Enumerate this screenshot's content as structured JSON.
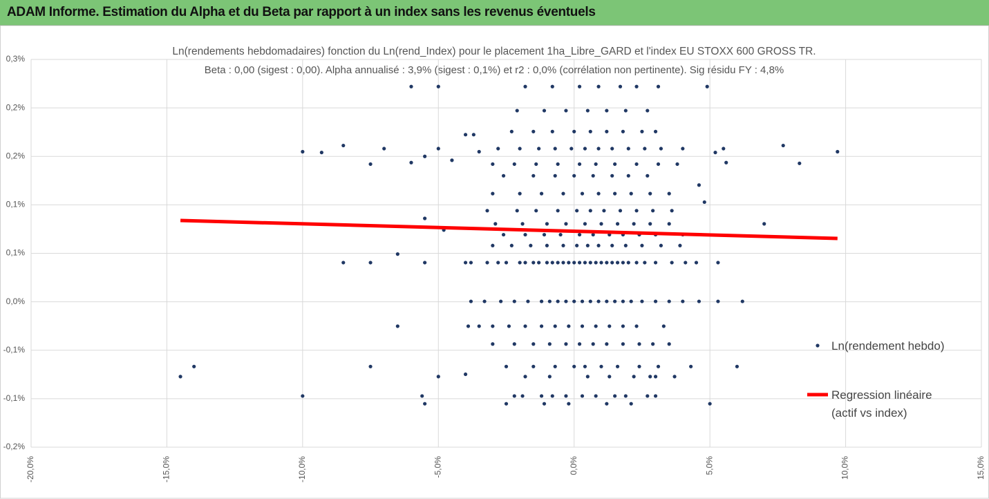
{
  "header": {
    "title": "ADAM Informe. Estimation du Alpha et du Beta par rapport à un index sans les revenus éventuels"
  },
  "chart_data": {
    "type": "scatter",
    "title": "Ln(rendements hebdomadaires) fonction du Ln(rend_Index) pour le placement 1ha_Libre_GARD et l'index EU STOXX 600 GROSS TR.",
    "subtitle": "Beta : 0,00 (sigest : 0,00). Alpha annualisé : 3,9% (sigest : 0,1%) et r2 : 0,0% (corrélation non pertinente). Sig résidu FY : 4,8%",
    "xlim": [
      -20,
      15
    ],
    "xticks": [
      {
        "value": -20,
        "label": "-20,0%"
      },
      {
        "value": -15,
        "label": "-15,0%"
      },
      {
        "value": -10,
        "label": "-10,0%"
      },
      {
        "value": -5,
        "label": "-5,0%"
      },
      {
        "value": 0,
        "label": "0,0%"
      },
      {
        "value": 5,
        "label": "5,0%"
      },
      {
        "value": 10,
        "label": "10,0%"
      },
      {
        "value": 15,
        "label": "15,0%"
      }
    ],
    "ylim": [
      -0.2,
      0.3
    ],
    "yticks": [
      {
        "value": 0.3,
        "label": "0,3%"
      },
      {
        "value": 0.2375,
        "label": "0,2%"
      },
      {
        "value": 0.175,
        "label": "0,2%"
      },
      {
        "value": 0.1125,
        "label": "0,1%"
      },
      {
        "value": 0.05,
        "label": "0,1%"
      },
      {
        "value": -0.0125,
        "label": "0,0%"
      },
      {
        "value": -0.075,
        "label": "-0,1%"
      },
      {
        "value": -0.1375,
        "label": "-0,1%"
      },
      {
        "value": -0.2,
        "label": "-0,2%"
      }
    ],
    "grid": true,
    "legend": "right",
    "series": [
      {
        "name": "Ln(rendement hebdo)",
        "type": "scatter",
        "color": "#203864",
        "x": [
          -3.8,
          -3.2,
          -2.8,
          -2.5,
          -2.0,
          -1.8,
          -1.5,
          -1.3,
          -1.0,
          -0.8,
          -0.6,
          -0.4,
          -0.2,
          0.0,
          0.2,
          0.4,
          0.6,
          0.8,
          1.0,
          1.2,
          1.4,
          1.6,
          1.8,
          2.0,
          2.3,
          2.6,
          3.0,
          3.6,
          4.1,
          4.5,
          -3.8,
          -3.3,
          -2.7,
          -2.2,
          -1.7,
          -1.2,
          -0.9,
          -0.6,
          -0.3,
          0.0,
          0.3,
          0.6,
          0.9,
          1.2,
          1.5,
          1.8,
          2.1,
          2.5,
          3.0,
          3.5,
          4.0,
          4.6,
          5.3,
          -3.9,
          -3.5,
          -3.0,
          -2.4,
          -1.8,
          -1.2,
          -0.7,
          -0.2,
          0.3,
          0.8,
          1.3,
          1.8,
          2.3,
          3.3,
          -3.0,
          -2.2,
          -1.5,
          -0.9,
          -0.3,
          0.2,
          0.7,
          1.2,
          1.8,
          2.4,
          2.9,
          3.5,
          -2.5,
          -1.5,
          -0.7,
          0.0,
          0.4,
          1.0,
          1.6,
          2.4,
          3.1,
          4.3,
          -1.8,
          -0.9,
          0.5,
          1.3,
          2.2,
          2.8,
          3.0,
          3.7,
          -2.2,
          -1.9,
          -1.2,
          -0.8,
          -0.3,
          0.3,
          0.8,
          1.5,
          1.9,
          2.7,
          3.0,
          -2.5,
          -1.1,
          -0.2,
          1.2,
          2.1,
          -3.0,
          -2.3,
          -1.6,
          -1.0,
          -0.4,
          0.1,
          0.5,
          0.9,
          1.4,
          1.9,
          2.5,
          3.2,
          3.9,
          -2.6,
          -1.8,
          -1.1,
          -0.5,
          0.2,
          0.7,
          1.3,
          1.8,
          2.4,
          3.0,
          4.0,
          -2.9,
          -1.9,
          -1.0,
          -0.3,
          0.4,
          1.0,
          1.6,
          2.2,
          2.8,
          3.5,
          -3.2,
          -2.1,
          -1.4,
          -0.6,
          0.1,
          0.6,
          1.1,
          1.7,
          2.3,
          2.9,
          3.6,
          -3.0,
          -2.0,
          -1.2,
          -0.4,
          0.3,
          0.9,
          1.5,
          2.1,
          2.8,
          3.5,
          -2.6,
          -1.5,
          -0.7,
          0.0,
          0.7,
          1.4,
          2.0,
          2.7,
          -3.0,
          -2.2,
          -1.4,
          -0.6,
          0.2,
          0.8,
          1.5,
          2.3,
          3.1,
          3.8,
          -2.8,
          -2.0,
          -1.3,
          -0.7,
          -0.1,
          0.4,
          0.9,
          1.4,
          2.0,
          2.6,
          3.2,
          4.0,
          -2.3,
          -1.5,
          -0.8,
          0.0,
          0.6,
          1.2,
          1.8,
          2.5,
          3.0,
          -2.1,
          -1.1,
          -0.3,
          0.5,
          1.2,
          1.9,
          2.7,
          -1.8,
          -0.8,
          0.2,
          0.9,
          1.7,
          2.3,
          3.1,
          -14.5,
          -14.0,
          -10.0,
          -10.0,
          -9.3,
          -8.5,
          -8.5,
          -7.5,
          -7.5,
          -7.5,
          -7.0,
          9.7,
          8.3,
          7.7,
          7.0,
          6.0,
          6.2,
          5.3,
          5.0,
          4.9,
          5.2,
          5.5,
          5.6,
          4.6,
          4.8,
          -6.5,
          -6.5,
          -5.5,
          -5.6,
          -5.5,
          -5.0,
          -4.0,
          -6.0,
          -5.5,
          -5.0,
          -4.5,
          -4.0,
          -3.7,
          -3.5,
          -6.0,
          -5.0,
          -5.5,
          -4.0,
          -4.8
        ],
        "values": [
          0.038,
          0.038,
          0.038,
          0.038,
          0.038,
          0.038,
          0.038,
          0.038,
          0.038,
          0.038,
          0.038,
          0.038,
          0.038,
          0.038,
          0.038,
          0.038,
          0.038,
          0.038,
          0.038,
          0.038,
          0.038,
          0.038,
          0.038,
          0.038,
          0.038,
          0.038,
          0.038,
          0.038,
          0.038,
          0.038,
          -0.012,
          -0.012,
          -0.012,
          -0.012,
          -0.012,
          -0.012,
          -0.012,
          -0.012,
          -0.012,
          -0.012,
          -0.012,
          -0.012,
          -0.012,
          -0.012,
          -0.012,
          -0.012,
          -0.012,
          -0.012,
          -0.012,
          -0.012,
          -0.012,
          -0.012,
          -0.012,
          -0.044,
          -0.044,
          -0.044,
          -0.044,
          -0.044,
          -0.044,
          -0.044,
          -0.044,
          -0.044,
          -0.044,
          -0.044,
          -0.044,
          -0.044,
          -0.044,
          -0.067,
          -0.067,
          -0.067,
          -0.067,
          -0.067,
          -0.067,
          -0.067,
          -0.067,
          -0.067,
          -0.067,
          -0.067,
          -0.067,
          -0.096,
          -0.096,
          -0.096,
          -0.096,
          -0.096,
          -0.096,
          -0.096,
          -0.096,
          -0.096,
          -0.096,
          -0.109,
          -0.109,
          -0.109,
          -0.109,
          -0.109,
          -0.109,
          -0.109,
          -0.109,
          -0.134,
          -0.134,
          -0.134,
          -0.134,
          -0.134,
          -0.134,
          -0.134,
          -0.134,
          -0.134,
          -0.134,
          -0.134,
          -0.144,
          -0.144,
          -0.144,
          -0.144,
          -0.144,
          0.06,
          0.06,
          0.06,
          0.06,
          0.06,
          0.06,
          0.06,
          0.06,
          0.06,
          0.06,
          0.06,
          0.06,
          0.06,
          0.074,
          0.074,
          0.074,
          0.074,
          0.074,
          0.074,
          0.074,
          0.074,
          0.074,
          0.074,
          0.074,
          0.088,
          0.088,
          0.088,
          0.088,
          0.088,
          0.088,
          0.088,
          0.088,
          0.088,
          0.088,
          0.105,
          0.105,
          0.105,
          0.105,
          0.105,
          0.105,
          0.105,
          0.105,
          0.105,
          0.105,
          0.105,
          0.127,
          0.127,
          0.127,
          0.127,
          0.127,
          0.127,
          0.127,
          0.127,
          0.127,
          0.127,
          0.15,
          0.15,
          0.15,
          0.15,
          0.15,
          0.15,
          0.15,
          0.15,
          0.165,
          0.165,
          0.165,
          0.165,
          0.165,
          0.165,
          0.165,
          0.165,
          0.165,
          0.165,
          0.185,
          0.185,
          0.185,
          0.185,
          0.185,
          0.185,
          0.185,
          0.185,
          0.185,
          0.185,
          0.185,
          0.185,
          0.207,
          0.207,
          0.207,
          0.207,
          0.207,
          0.207,
          0.207,
          0.207,
          0.207,
          0.234,
          0.234,
          0.234,
          0.234,
          0.234,
          0.234,
          0.234,
          0.265,
          0.265,
          0.265,
          0.265,
          0.265,
          0.265,
          0.265,
          -0.109,
          -0.096,
          -0.134,
          0.181,
          0.18,
          0.189,
          0.038,
          0.038,
          0.165,
          -0.096,
          0.185,
          0.181,
          0.166,
          0.189,
          0.088,
          -0.096,
          -0.012,
          0.038,
          -0.144,
          0.265,
          0.18,
          0.185,
          0.167,
          0.138,
          0.116,
          -0.044,
          0.049,
          0.038,
          -0.134,
          -0.144,
          -0.109,
          -0.106,
          0.167,
          0.175,
          0.185,
          0.17,
          0.203,
          0.203,
          0.181,
          0.265,
          0.265,
          0.095,
          0.038,
          0.08
        ]
      },
      {
        "name": "Regression linéaire (actif vs index)",
        "type": "line",
        "color": "#ff0000",
        "x": [
          -14.5,
          9.7
        ],
        "values": [
          0.0923,
          0.0692
        ]
      }
    ]
  }
}
